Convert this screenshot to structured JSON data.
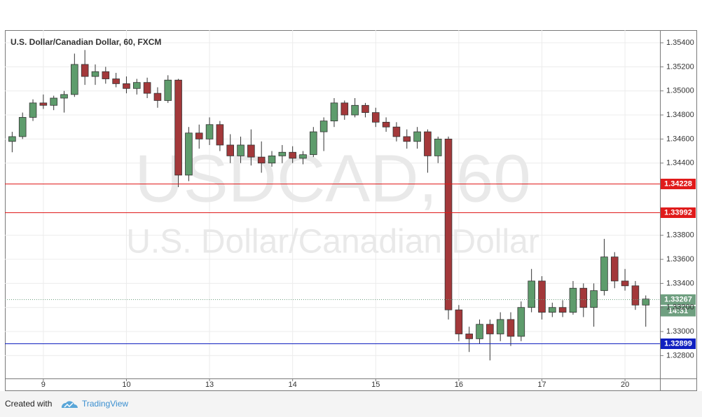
{
  "chart_data": {
    "type": "candlestick",
    "title": "U.S. Dollar/Canadian Dollar, 60, FXCM",
    "watermark": "USDCAD, 60",
    "watermark_subtitle": "U.S. Dollar/Canadian Dollar",
    "x": [
      -9,
      -6,
      -3,
      0,
      3,
      6,
      9,
      12,
      15,
      18,
      21,
      24,
      27,
      30,
      33,
      36,
      39,
      42,
      45,
      48,
      51,
      54,
      57,
      60,
      63,
      66,
      69,
      72,
      75,
      78,
      81,
      84,
      87,
      90,
      93,
      96,
      99,
      102,
      105,
      108,
      111,
      114,
      117,
      120,
      123,
      126,
      129,
      132,
      135,
      138,
      141,
      144,
      147,
      150,
      153,
      156,
      159,
      162,
      165,
      168,
      171,
      174
    ],
    "open": [
      1.3458,
      1.3462,
      1.3478,
      1.349,
      1.3488,
      1.3494,
      1.3497,
      1.3522,
      1.3512,
      1.3516,
      1.351,
      1.3506,
      1.3502,
      1.3507,
      1.3498,
      1.3492,
      1.3509,
      1.343,
      1.3465,
      1.346,
      1.3472,
      1.3455,
      1.3446,
      1.3455,
      1.3445,
      1.344,
      1.3446,
      1.3449,
      1.3444,
      1.3447,
      1.3466,
      1.3475,
      1.349,
      1.348,
      1.3488,
      1.3482,
      1.3474,
      1.347,
      1.3462,
      1.3458,
      1.3466,
      1.3446,
      1.346,
      1.3318,
      1.3298,
      1.3294,
      1.3306,
      1.3298,
      1.331,
      1.3296,
      1.332,
      1.3342,
      1.3316,
      1.332,
      1.3316,
      1.3336,
      1.332,
      1.3334,
      1.3362,
      1.3342,
      1.3338,
      1.3322
    ],
    "high": [
      1.3466,
      1.3482,
      1.3493,
      1.3497,
      1.3496,
      1.35,
      1.3531,
      1.3534,
      1.3522,
      1.352,
      1.3515,
      1.3512,
      1.351,
      1.3511,
      1.3503,
      1.3513,
      1.351,
      1.347,
      1.3472,
      1.3478,
      1.3475,
      1.3464,
      1.3462,
      1.3468,
      1.3458,
      1.345,
      1.3455,
      1.3454,
      1.345,
      1.347,
      1.3478,
      1.3494,
      1.3492,
      1.3494,
      1.349,
      1.3486,
      1.3478,
      1.3474,
      1.3468,
      1.347,
      1.3468,
      1.3462,
      1.3462,
      1.3322,
      1.3304,
      1.331,
      1.331,
      1.3316,
      1.3316,
      1.3325,
      1.3352,
      1.3346,
      1.3324,
      1.3326,
      1.3342,
      1.334,
      1.334,
      1.3377,
      1.3366,
      1.3352,
      1.3342,
      1.333
    ],
    "low": [
      1.3449,
      1.346,
      1.3475,
      1.3485,
      1.3484,
      1.3482,
      1.3495,
      1.3505,
      1.3505,
      1.3506,
      1.3503,
      1.3498,
      1.3497,
      1.3494,
      1.3486,
      1.349,
      1.342,
      1.3425,
      1.3452,
      1.3455,
      1.345,
      1.344,
      1.344,
      1.3438,
      1.3432,
      1.3437,
      1.344,
      1.344,
      1.3439,
      1.3445,
      1.345,
      1.347,
      1.3476,
      1.3478,
      1.3478,
      1.347,
      1.3466,
      1.3458,
      1.3452,
      1.3452,
      1.3432,
      1.344,
      1.331,
      1.3292,
      1.3283,
      1.329,
      1.3276,
      1.3292,
      1.3288,
      1.3292,
      1.3316,
      1.331,
      1.3312,
      1.3312,
      1.3314,
      1.3312,
      1.3304,
      1.333,
      1.3336,
      1.3334,
      1.3318,
      1.3304
    ],
    "close": [
      1.3462,
      1.3478,
      1.349,
      1.3488,
      1.3494,
      1.3497,
      1.3522,
      1.3512,
      1.3516,
      1.351,
      1.3506,
      1.3502,
      1.3507,
      1.3498,
      1.3492,
      1.3509,
      1.343,
      1.3465,
      1.346,
      1.3472,
      1.3455,
      1.3446,
      1.3455,
      1.3445,
      1.344,
      1.3446,
      1.3449,
      1.3444,
      1.3447,
      1.3466,
      1.3475,
      1.349,
      1.348,
      1.3488,
      1.3482,
      1.3474,
      1.347,
      1.3462,
      1.3458,
      1.3466,
      1.3446,
      1.346,
      1.3318,
      1.3298,
      1.3294,
      1.3306,
      1.3298,
      1.331,
      1.3296,
      1.332,
      1.3342,
      1.3316,
      1.332,
      1.3316,
      1.3336,
      1.332,
      1.3334,
      1.3362,
      1.3342,
      1.3338,
      1.3322,
      1.3327
    ],
    "up_color": "#5e9c6c",
    "down_color": "#a3383a",
    "xlim": [
      -11.1,
      178.1
    ],
    "xticks": [
      {
        "value": 0,
        "label": "9"
      },
      {
        "value": 24,
        "label": "10"
      },
      {
        "value": 48,
        "label": "13"
      },
      {
        "value": 72,
        "label": "14"
      },
      {
        "value": 96,
        "label": "15"
      },
      {
        "value": 120,
        "label": "16"
      },
      {
        "value": 144,
        "label": "17"
      },
      {
        "value": 168,
        "label": "20"
      }
    ],
    "ylim": [
      1.3261,
      1.35505
    ],
    "yticks": [
      {
        "value": 1.328,
        "label": "1.32800"
      },
      {
        "value": 1.33,
        "label": "1.33000"
      },
      {
        "value": 1.332,
        "label": "1.33200"
      },
      {
        "value": 1.334,
        "label": "1.33400"
      },
      {
        "value": 1.336,
        "label": "1.33600"
      },
      {
        "value": 1.338,
        "label": "1.33800"
      },
      {
        "value": 1.344,
        "label": "1.34400"
      },
      {
        "value": 1.346,
        "label": "1.34600"
      },
      {
        "value": 1.348,
        "label": "1.34800"
      },
      {
        "value": 1.35,
        "label": "1.35000"
      },
      {
        "value": 1.352,
        "label": "1.35200"
      },
      {
        "value": 1.354,
        "label": "1.35400"
      }
    ],
    "grid": true,
    "levels": [
      {
        "value": 1.34228,
        "color": "#e01b1b",
        "style": "solid"
      },
      {
        "value": 1.33992,
        "color": "#e01b1b",
        "style": "solid"
      },
      {
        "value": 1.33267,
        "color": "#6f9f80",
        "style": "dotted",
        "countdown": "14:31"
      },
      {
        "value": 1.32899,
        "color": "#1020c0",
        "style": "solid"
      }
    ]
  },
  "footer": {
    "text": "Created with",
    "brand": "TradingView"
  }
}
